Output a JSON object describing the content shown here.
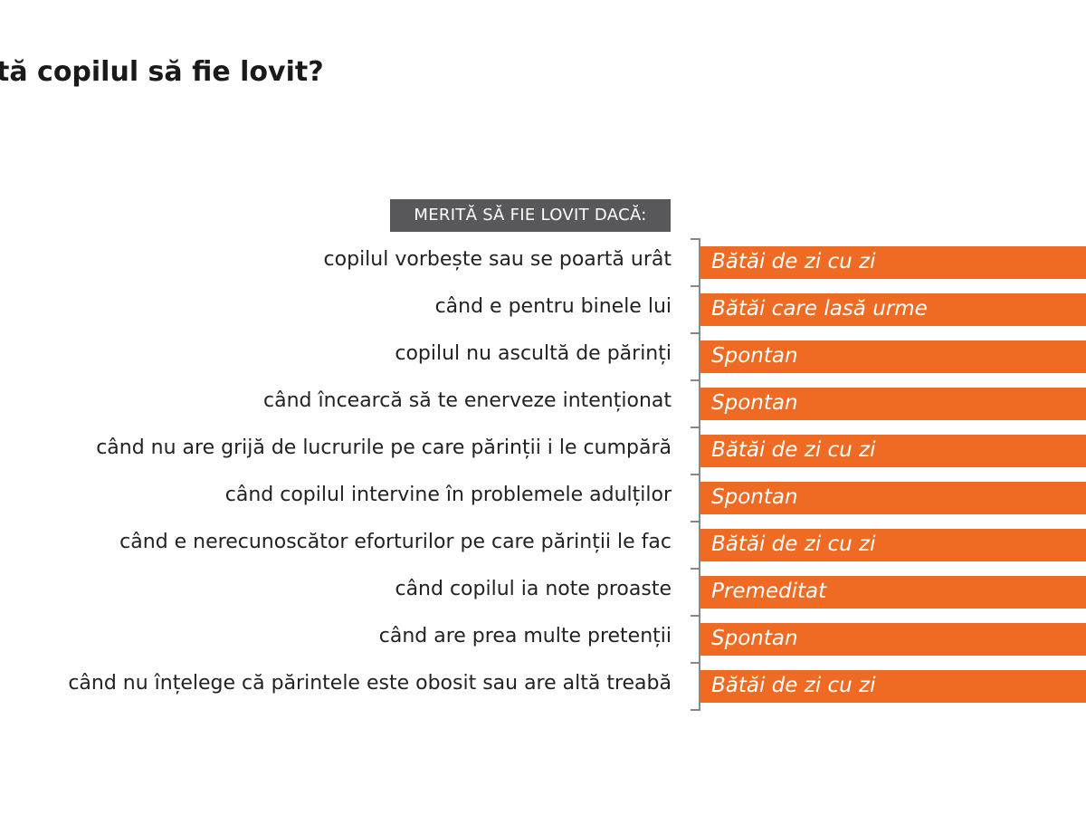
{
  "title": "tă copilul să fie lovit?",
  "header_label": "MERITĂ SĂ FIE LOVIT DACĂ:",
  "colors": {
    "bar": "#ef6a22",
    "header_bg": "#58585a",
    "bracket": "#888888"
  },
  "chart_data": {
    "type": "table",
    "title": "tă copilul să fie lovit?",
    "column_header": "MERITĂ SĂ FIE LOVIT DACĂ:",
    "rows": [
      {
        "reason": "copilul vorbește sau se poartă urât",
        "category": "Bătăi de zi cu zi"
      },
      {
        "reason": "când e pentru binele lui",
        "category": "Bătăi care lasă urme"
      },
      {
        "reason": "copilul nu ascultă de părinți",
        "category": "Spontan"
      },
      {
        "reason": "când încearcă să te enerveze intenționat",
        "category": "Spontan"
      },
      {
        "reason": "când nu are grijă de lucrurile pe care părinții i le cumpără",
        "category": "Bătăi de zi cu zi"
      },
      {
        "reason": "când copilul intervine în problemele adulților",
        "category": "Spontan"
      },
      {
        "reason": "când e nerecunoscător eforturilor pe care părinții le fac",
        "category": "Bătăi de zi cu zi"
      },
      {
        "reason": "când copilul ia note proaste",
        "category": "Premeditat"
      },
      {
        "reason": "când are prea multe pretenții",
        "category": "Spontan"
      },
      {
        "reason": "când nu înțelege că părintele este obosit sau are altă treabă",
        "category": "Bătăi de zi cu zi"
      }
    ]
  }
}
